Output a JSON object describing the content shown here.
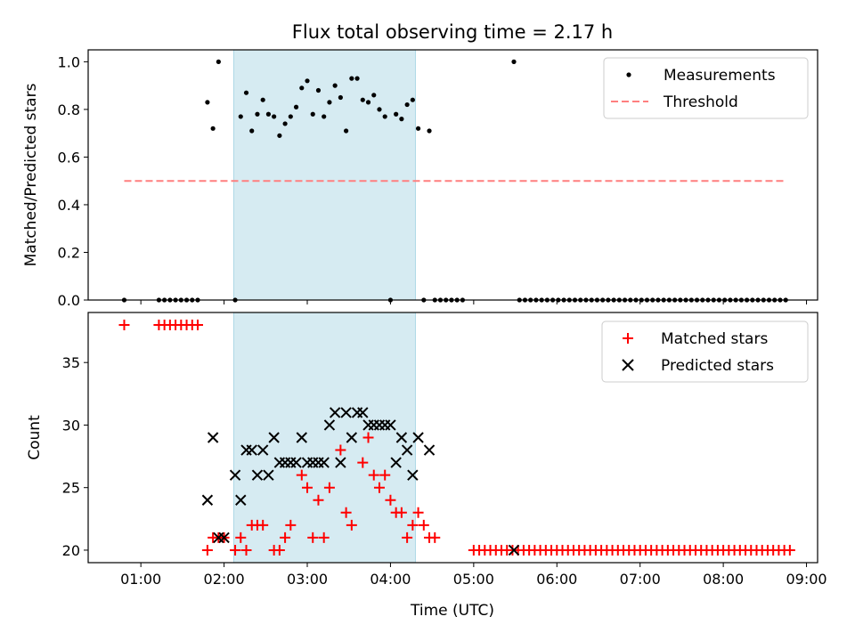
{
  "title": "Flux total observing time = 2.17 h",
  "chart_data": [
    {
      "type": "scatter",
      "ylabel": "Matched/Predicted stars",
      "xlim": [
        "00:22",
        "09:08"
      ],
      "ylim": [
        0,
        1.05
      ],
      "yticks": [
        "0.0",
        "0.2",
        "0.4",
        "0.6",
        "0.8",
        "1.0"
      ],
      "shaded_interval": [
        "02:07",
        "04:18"
      ],
      "shade_color": "#add8e6",
      "legend_location": "upper right",
      "series": [
        {
          "name": "Measurements",
          "marker": "dot",
          "color": "#000000",
          "points": [
            [
              "00:48",
              0.0
            ],
            [
              "01:13",
              0.0
            ],
            [
              "01:17",
              0.0
            ],
            [
              "01:21",
              0.0
            ],
            [
              "01:25",
              0.0
            ],
            [
              "01:29",
              0.0
            ],
            [
              "01:33",
              0.0
            ],
            [
              "01:37",
              0.0
            ],
            [
              "01:41",
              0.0
            ],
            [
              "01:48",
              0.83
            ],
            [
              "01:52",
              0.72
            ],
            [
              "01:56",
              1.0
            ],
            [
              "02:08",
              0.0
            ],
            [
              "02:12",
              0.77
            ],
            [
              "02:16",
              0.87
            ],
            [
              "02:20",
              0.71
            ],
            [
              "02:24",
              0.78
            ],
            [
              "02:28",
              0.84
            ],
            [
              "02:32",
              0.78
            ],
            [
              "02:36",
              0.77
            ],
            [
              "02:40",
              0.69
            ],
            [
              "02:44",
              0.74
            ],
            [
              "02:48",
              0.77
            ],
            [
              "02:52",
              0.81
            ],
            [
              "02:56",
              0.89
            ],
            [
              "03:00",
              0.92
            ],
            [
              "03:04",
              0.78
            ],
            [
              "03:08",
              0.88
            ],
            [
              "03:12",
              0.77
            ],
            [
              "03:16",
              0.83
            ],
            [
              "03:20",
              0.9
            ],
            [
              "03:24",
              0.85
            ],
            [
              "03:28",
              0.71
            ],
            [
              "03:32",
              0.93
            ],
            [
              "03:36",
              0.93
            ],
            [
              "03:40",
              0.84
            ],
            [
              "03:44",
              0.83
            ],
            [
              "03:48",
              0.86
            ],
            [
              "03:52",
              0.8
            ],
            [
              "03:56",
              0.77
            ],
            [
              "04:00",
              0.0
            ],
            [
              "04:04",
              0.78
            ],
            [
              "04:08",
              0.76
            ],
            [
              "04:12",
              0.82
            ],
            [
              "04:16",
              0.84
            ],
            [
              "04:20",
              0.72
            ],
            [
              "04:24",
              0.0
            ],
            [
              "04:28",
              0.71
            ],
            [
              "04:32",
              0.0
            ],
            [
              "04:36",
              0.0
            ],
            [
              "04:40",
              0.0
            ],
            [
              "04:44",
              0.0
            ],
            [
              "04:48",
              0.0
            ],
            [
              "04:52",
              0.0
            ],
            [
              "05:29",
              1.0
            ],
            [
              "05:33",
              0.0
            ],
            [
              "05:37",
              0.0
            ],
            [
              "05:41",
              0.0
            ],
            [
              "05:45",
              0.0
            ],
            [
              "05:49",
              0.0
            ],
            [
              "05:53",
              0.0
            ],
            [
              "05:57",
              0.0
            ],
            [
              "06:01",
              0.0
            ],
            [
              "06:05",
              0.0
            ],
            [
              "06:09",
              0.0
            ],
            [
              "06:13",
              0.0
            ],
            [
              "06:17",
              0.0
            ],
            [
              "06:21",
              0.0
            ],
            [
              "06:25",
              0.0
            ],
            [
              "06:29",
              0.0
            ],
            [
              "06:33",
              0.0
            ],
            [
              "06:37",
              0.0
            ],
            [
              "06:41",
              0.0
            ],
            [
              "06:45",
              0.0
            ],
            [
              "06:49",
              0.0
            ],
            [
              "06:53",
              0.0
            ],
            [
              "06:57",
              0.0
            ],
            [
              "07:01",
              0.0
            ],
            [
              "07:05",
              0.0
            ],
            [
              "07:09",
              0.0
            ],
            [
              "07:13",
              0.0
            ],
            [
              "07:17",
              0.0
            ],
            [
              "07:21",
              0.0
            ],
            [
              "07:25",
              0.0
            ],
            [
              "07:29",
              0.0
            ],
            [
              "07:33",
              0.0
            ],
            [
              "07:37",
              0.0
            ],
            [
              "07:41",
              0.0
            ],
            [
              "07:45",
              0.0
            ],
            [
              "07:49",
              0.0
            ],
            [
              "07:53",
              0.0
            ],
            [
              "07:57",
              0.0
            ],
            [
              "08:01",
              0.0
            ],
            [
              "08:05",
              0.0
            ],
            [
              "08:09",
              0.0
            ],
            [
              "08:13",
              0.0
            ],
            [
              "08:17",
              0.0
            ],
            [
              "08:21",
              0.0
            ],
            [
              "08:25",
              0.0
            ],
            [
              "08:29",
              0.0
            ],
            [
              "08:33",
              0.0
            ],
            [
              "08:37",
              0.0
            ],
            [
              "08:41",
              0.0
            ],
            [
              "08:45",
              0.0
            ]
          ]
        },
        {
          "name": "Threshold",
          "line": "dashed",
          "color": "#ff7f7f",
          "points": [
            [
              "00:48",
              0.5
            ],
            [
              "08:45",
              0.5
            ]
          ]
        }
      ]
    },
    {
      "type": "scatter",
      "xlabel": "Time (UTC)",
      "ylabel": "Count",
      "xlim": [
        "00:22",
        "09:08"
      ],
      "ylim": [
        19,
        39
      ],
      "yticks": [
        "20",
        "25",
        "30",
        "35"
      ],
      "xticks": [
        "01:00",
        "02:00",
        "03:00",
        "04:00",
        "05:00",
        "06:00",
        "07:00",
        "08:00",
        "09:00"
      ],
      "shaded_interval": [
        "02:07",
        "04:18"
      ],
      "legend_location": "upper right",
      "series": [
        {
          "name": "Matched stars",
          "marker": "plus",
          "color": "#ff0000",
          "points": [
            [
              "00:48",
              38
            ],
            [
              "01:13",
              38
            ],
            [
              "01:17",
              38
            ],
            [
              "01:21",
              38
            ],
            [
              "01:25",
              38
            ],
            [
              "01:29",
              38
            ],
            [
              "01:33",
              38
            ],
            [
              "01:37",
              38
            ],
            [
              "01:41",
              38
            ],
            [
              "01:48",
              20
            ],
            [
              "01:52",
              21
            ],
            [
              "01:56",
              21
            ],
            [
              "02:00",
              21
            ],
            [
              "02:08",
              20
            ],
            [
              "02:12",
              21
            ],
            [
              "02:16",
              20
            ],
            [
              "02:20",
              22
            ],
            [
              "02:24",
              22
            ],
            [
              "02:28",
              22
            ],
            [
              "02:36",
              20
            ],
            [
              "02:40",
              20
            ],
            [
              "02:44",
              21
            ],
            [
              "02:48",
              22
            ],
            [
              "02:56",
              26
            ],
            [
              "03:00",
              25
            ],
            [
              "03:04",
              21
            ],
            [
              "03:08",
              24
            ],
            [
              "03:12",
              21
            ],
            [
              "03:16",
              25
            ],
            [
              "03:24",
              28
            ],
            [
              "03:28",
              23
            ],
            [
              "03:32",
              22
            ],
            [
              "03:40",
              27
            ],
            [
              "03:44",
              29
            ],
            [
              "03:48",
              26
            ],
            [
              "03:52",
              25
            ],
            [
              "03:56",
              26
            ],
            [
              "04:00",
              24
            ],
            [
              "04:04",
              23
            ],
            [
              "04:08",
              23
            ],
            [
              "04:12",
              21
            ],
            [
              "04:16",
              22
            ],
            [
              "04:20",
              23
            ],
            [
              "04:24",
              22
            ],
            [
              "04:28",
              21
            ],
            [
              "04:32",
              21
            ],
            [
              "05:00",
              20
            ],
            [
              "05:04",
              20
            ],
            [
              "05:08",
              20
            ],
            [
              "05:12",
              20
            ],
            [
              "05:16",
              20
            ],
            [
              "05:20",
              20
            ],
            [
              "05:24",
              20
            ],
            [
              "05:28",
              20
            ],
            [
              "05:32",
              20
            ],
            [
              "05:36",
              20
            ],
            [
              "05:40",
              20
            ],
            [
              "05:44",
              20
            ],
            [
              "05:48",
              20
            ],
            [
              "05:52",
              20
            ],
            [
              "05:56",
              20
            ],
            [
              "06:00",
              20
            ],
            [
              "06:04",
              20
            ],
            [
              "06:08",
              20
            ],
            [
              "06:12",
              20
            ],
            [
              "06:16",
              20
            ],
            [
              "06:20",
              20
            ],
            [
              "06:24",
              20
            ],
            [
              "06:28",
              20
            ],
            [
              "06:32",
              20
            ],
            [
              "06:36",
              20
            ],
            [
              "06:40",
              20
            ],
            [
              "06:44",
              20
            ],
            [
              "06:48",
              20
            ],
            [
              "06:52",
              20
            ],
            [
              "06:56",
              20
            ],
            [
              "07:00",
              20
            ],
            [
              "07:04",
              20
            ],
            [
              "07:08",
              20
            ],
            [
              "07:12",
              20
            ],
            [
              "07:16",
              20
            ],
            [
              "07:20",
              20
            ],
            [
              "07:24",
              20
            ],
            [
              "07:28",
              20
            ],
            [
              "07:32",
              20
            ],
            [
              "07:36",
              20
            ],
            [
              "07:40",
              20
            ],
            [
              "07:44",
              20
            ],
            [
              "07:48",
              20
            ],
            [
              "07:52",
              20
            ],
            [
              "07:56",
              20
            ],
            [
              "08:00",
              20
            ],
            [
              "08:04",
              20
            ],
            [
              "08:08",
              20
            ],
            [
              "08:12",
              20
            ],
            [
              "08:16",
              20
            ],
            [
              "08:20",
              20
            ],
            [
              "08:24",
              20
            ],
            [
              "08:28",
              20
            ],
            [
              "08:32",
              20
            ],
            [
              "08:36",
              20
            ],
            [
              "08:40",
              20
            ],
            [
              "08:44",
              20
            ],
            [
              "08:48",
              20
            ]
          ]
        },
        {
          "name": "Predicted stars",
          "marker": "x",
          "color": "#000000",
          "points": [
            [
              "01:48",
              24
            ],
            [
              "01:52",
              29
            ],
            [
              "01:56",
              21
            ],
            [
              "02:00",
              21
            ],
            [
              "02:08",
              26
            ],
            [
              "02:12",
              24
            ],
            [
              "02:16",
              28
            ],
            [
              "02:20",
              28
            ],
            [
              "02:24",
              26
            ],
            [
              "02:28",
              28
            ],
            [
              "02:32",
              26
            ],
            [
              "02:36",
              29
            ],
            [
              "02:40",
              27
            ],
            [
              "02:44",
              27
            ],
            [
              "02:48",
              27
            ],
            [
              "02:52",
              27
            ],
            [
              "02:56",
              29
            ],
            [
              "03:00",
              27
            ],
            [
              "03:04",
              27
            ],
            [
              "03:08",
              27
            ],
            [
              "03:12",
              27
            ],
            [
              "03:16",
              30
            ],
            [
              "03:20",
              31
            ],
            [
              "03:24",
              27
            ],
            [
              "03:28",
              31
            ],
            [
              "03:32",
              29
            ],
            [
              "03:36",
              31
            ],
            [
              "03:40",
              31
            ],
            [
              "03:44",
              30
            ],
            [
              "03:48",
              30
            ],
            [
              "03:52",
              30
            ],
            [
              "03:56",
              30
            ],
            [
              "04:00",
              30
            ],
            [
              "04:04",
              27
            ],
            [
              "04:08",
              29
            ],
            [
              "04:12",
              28
            ],
            [
              "04:16",
              26
            ],
            [
              "04:20",
              29
            ],
            [
              "04:28",
              28
            ],
            [
              "05:29",
              20
            ]
          ]
        }
      ]
    }
  ]
}
